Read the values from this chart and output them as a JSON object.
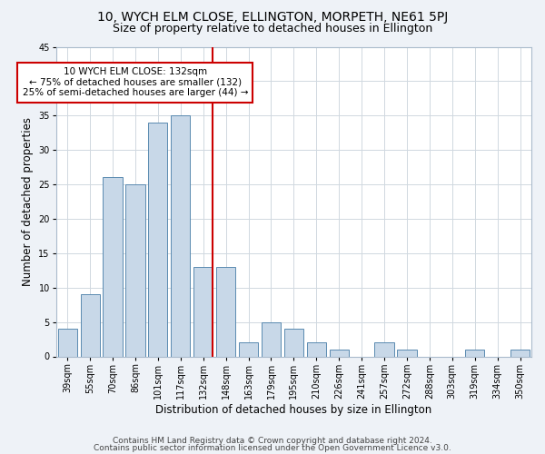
{
  "title_line1": "10, WYCH ELM CLOSE, ELLINGTON, MORPETH, NE61 5PJ",
  "title_line2": "Size of property relative to detached houses in Ellington",
  "xlabel": "Distribution of detached houses by size in Ellington",
  "ylabel": "Number of detached properties",
  "categories": [
    "39sqm",
    "55sqm",
    "70sqm",
    "86sqm",
    "101sqm",
    "117sqm",
    "132sqm",
    "148sqm",
    "163sqm",
    "179sqm",
    "195sqm",
    "210sqm",
    "226sqm",
    "241sqm",
    "257sqm",
    "272sqm",
    "288sqm",
    "303sqm",
    "319sqm",
    "334sqm",
    "350sqm"
  ],
  "values": [
    4,
    9,
    26,
    25,
    34,
    35,
    13,
    13,
    2,
    5,
    4,
    2,
    1,
    0,
    2,
    1,
    0,
    0,
    1,
    0,
    1
  ],
  "bar_color": "#c8d8e8",
  "bar_edgecolor": "#5a8ab0",
  "vline_index": 6,
  "vline_color": "#cc0000",
  "annotation_text": "10 WYCH ELM CLOSE: 132sqm\n← 75% of detached houses are smaller (132)\n25% of semi-detached houses are larger (44) →",
  "annotation_box_color": "#ffffff",
  "annotation_box_edgecolor": "#cc0000",
  "ylim": [
    0,
    45
  ],
  "yticks": [
    0,
    5,
    10,
    15,
    20,
    25,
    30,
    35,
    40,
    45
  ],
  "footer_line1": "Contains HM Land Registry data © Crown copyright and database right 2024.",
  "footer_line2": "Contains public sector information licensed under the Open Government Licence v3.0.",
  "bg_color": "#eef2f7",
  "plot_bg_color": "#ffffff",
  "grid_color": "#d0d8e0",
  "title_fontsize": 10,
  "subtitle_fontsize": 9,
  "axis_label_fontsize": 8.5,
  "tick_fontsize": 7,
  "footer_fontsize": 6.5
}
